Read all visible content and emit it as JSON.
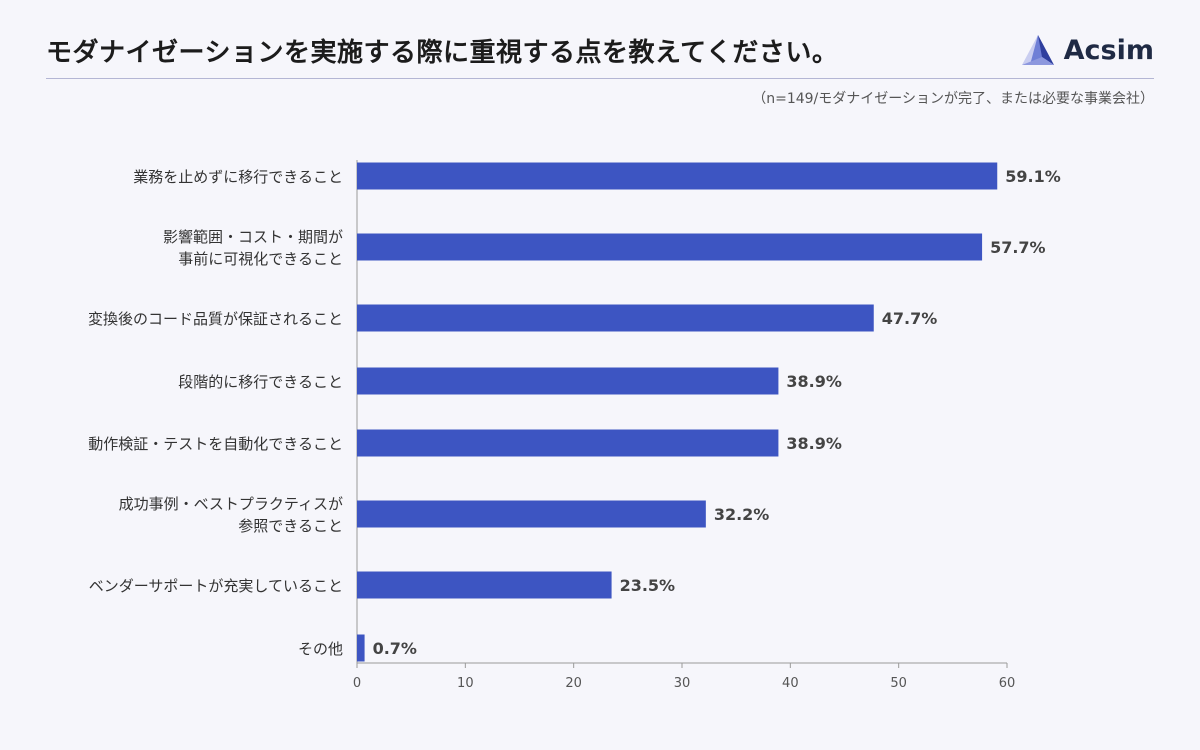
{
  "header": {
    "title": "モダナイゼーションを実施する際に重視する点を教えてください。",
    "logo_text": "Acsim"
  },
  "subtitle": "（n=149/モダナイゼーションが完了、または必要な事業会社）",
  "colors": {
    "bar": "#3d55c2",
    "axis": "#9a9a9a",
    "label": "#333333"
  },
  "chart_data": {
    "type": "bar",
    "orientation": "horizontal",
    "categories": [
      [
        "業務を止めずに移行できること"
      ],
      [
        "影響範囲・コスト・期間が",
        "事前に可視化できること"
      ],
      [
        "変換後のコード品質が保証されること"
      ],
      [
        "段階的に移行できること"
      ],
      [
        "動作検証・テストを自動化できること"
      ],
      [
        "成功事例・ベストプラクティスが",
        "参照できること"
      ],
      [
        "ベンダーサポートが充実していること"
      ],
      [
        "その他"
      ]
    ],
    "values": [
      59.1,
      57.7,
      47.7,
      38.9,
      38.9,
      32.2,
      23.5,
      0.7
    ],
    "value_labels": [
      "59.1%",
      "57.7%",
      "47.7%",
      "38.9%",
      "38.9%",
      "32.2%",
      "23.5%",
      "0.7%"
    ],
    "xlim": [
      0,
      60
    ],
    "xticks": [
      0,
      10,
      20,
      30,
      40,
      50,
      60
    ],
    "xlabel": "",
    "ylabel": "",
    "grid": false
  }
}
